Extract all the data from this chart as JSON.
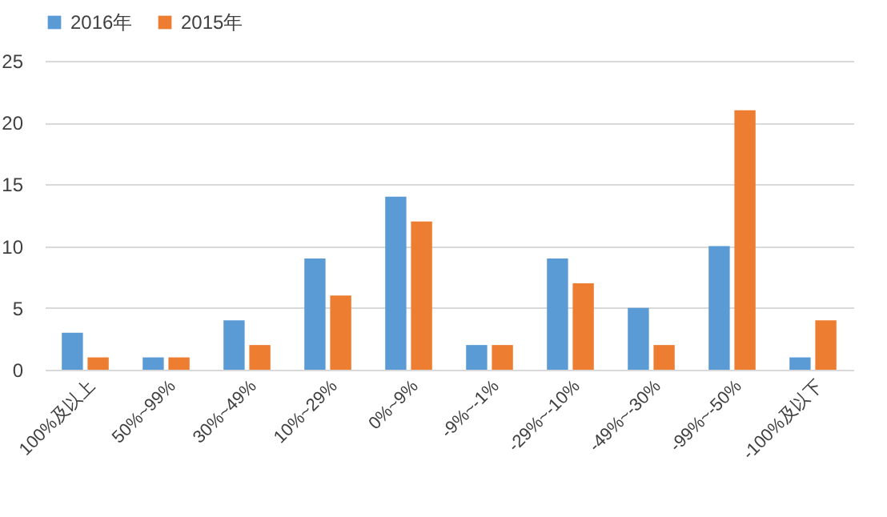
{
  "chart_data": {
    "type": "bar",
    "categories": [
      "100%及以上",
      "50%~99%",
      "30%~49%",
      "10%~29%",
      "0%~9%",
      "-9%~-1%",
      "-29%~-10%",
      "-49%~-30%",
      "-99%~-50%",
      "-100%及以下"
    ],
    "series": [
      {
        "name": "2016年",
        "color": "#5b9bd5",
        "values": [
          3,
          1,
          4,
          9,
          14,
          2,
          9,
          5,
          10,
          1
        ]
      },
      {
        "name": "2015年",
        "color": "#ed7d31",
        "values": [
          1,
          1,
          2,
          6,
          12,
          2,
          7,
          2,
          21,
          4
        ]
      }
    ],
    "ylim": [
      0,
      25
    ],
    "yticks": [
      0,
      5,
      10,
      15,
      20,
      25
    ],
    "grid": "y",
    "legend": "top"
  }
}
